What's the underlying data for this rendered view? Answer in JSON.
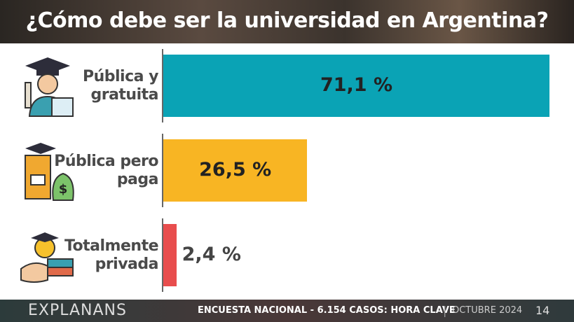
{
  "chart_data": {
    "type": "bar",
    "orientation": "horizontal",
    "title": "¿Cómo debe ser la universidad en Argentina?",
    "categories": [
      "Pública y gratuita",
      "Pública pero paga",
      "Totalmente privada"
    ],
    "values": [
      71.1,
      26.5,
      2.4
    ],
    "value_labels": [
      "71,1 %",
      "26,5 %",
      "2,4 %"
    ],
    "colors": [
      "#0aa3b5",
      "#f8b523",
      "#e84d4d"
    ]
  },
  "footer": {
    "brand": "EXPLANANS",
    "survey": "ENCUESTA NACIONAL - 6.154 CASOS:",
    "pollster": "HORA CLAVE",
    "date": "OCTUBRE 2024",
    "page": "14"
  }
}
